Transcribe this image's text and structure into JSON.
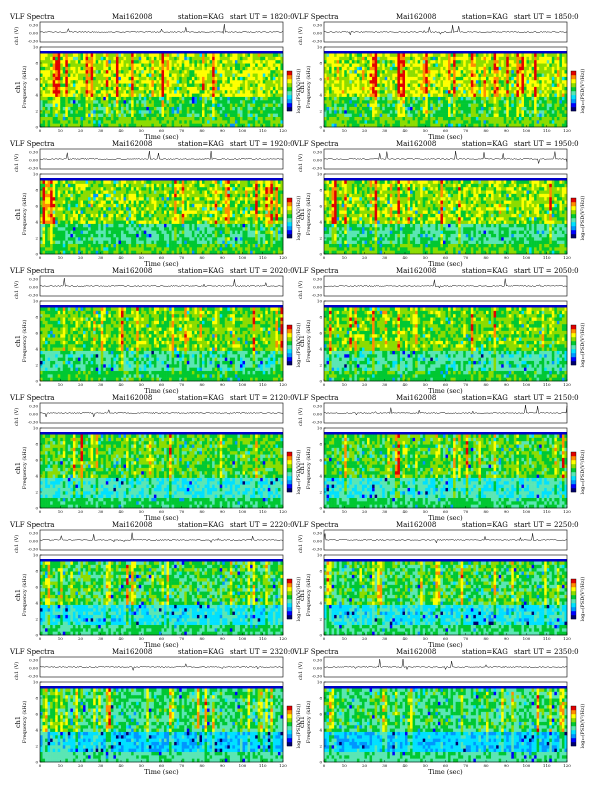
{
  "header": {
    "prefix": "VLF Spectra",
    "date": "Mai162008",
    "station": "station=KAG",
    "start_prefix": "start UT ="
  },
  "panel_times": [
    "1820:0",
    "1850:0",
    "1920:0",
    "1950:0",
    "2020:0",
    "2050:0",
    "2120:0",
    "2150:0",
    "2220:0",
    "2250:0",
    "2320:0",
    "2350:0"
  ],
  "labels": {
    "signal_axis": "ch1 (V)",
    "freq_axis": "ch1",
    "freq_axis_sub": "Frequency (kHz)",
    "time_axis": "Time (sec)",
    "colorbar": "log₁₀(PSD(V²/Hz))"
  },
  "ticks": {
    "time": [
      "0",
      "10",
      "20",
      "30",
      "40",
      "50",
      "60",
      "70",
      "80",
      "90",
      "100",
      "110",
      "120"
    ],
    "freq": [
      "0",
      "2",
      "4",
      "6",
      "8",
      "10"
    ],
    "signal": [
      "0.30",
      "0.00",
      "-0.30"
    ]
  },
  "colors": {
    "spectrogram_scale": [
      "#00006e",
      "#0000ff",
      "#0096ff",
      "#00e1ff",
      "#5ae6b4",
      "#00c832",
      "#8cdc00",
      "#ffff00",
      "#ff8c00",
      "#e10000"
    ],
    "saturated_band": "#0000c8"
  },
  "chart_data": {
    "type": "heatmap",
    "description_of_axes": {
      "x": "Time (sec)",
      "y": "Frequency (kHz)"
    },
    "xlim": [
      0,
      120
    ],
    "ylim": [
      0,
      10
    ],
    "signal_ylim": [
      -0.3,
      0.3
    ],
    "panels": [
      {
        "start_ut": "1820:0",
        "top_band_khz": 9.5
      },
      {
        "start_ut": "1850:0",
        "top_band_khz": 9.5
      },
      {
        "start_ut": "1920:0",
        "top_band_khz": 9.5
      },
      {
        "start_ut": "1950:0",
        "top_band_khz": 9.5
      },
      {
        "start_ut": "2020:0",
        "top_band_khz": 9.5
      },
      {
        "start_ut": "2050:0",
        "top_band_khz": 9.5
      },
      {
        "start_ut": "2120:0",
        "top_band_khz": 9.5
      },
      {
        "start_ut": "2150:0",
        "top_band_khz": 9.5
      },
      {
        "start_ut": "2220:0",
        "top_band_khz": 9.5
      },
      {
        "start_ut": "2250:0",
        "top_band_khz": 9.5
      },
      {
        "start_ut": "2320:0",
        "top_band_khz": 9.5
      },
      {
        "start_ut": "2350:0",
        "top_band_khz": 9.5
      }
    ]
  }
}
